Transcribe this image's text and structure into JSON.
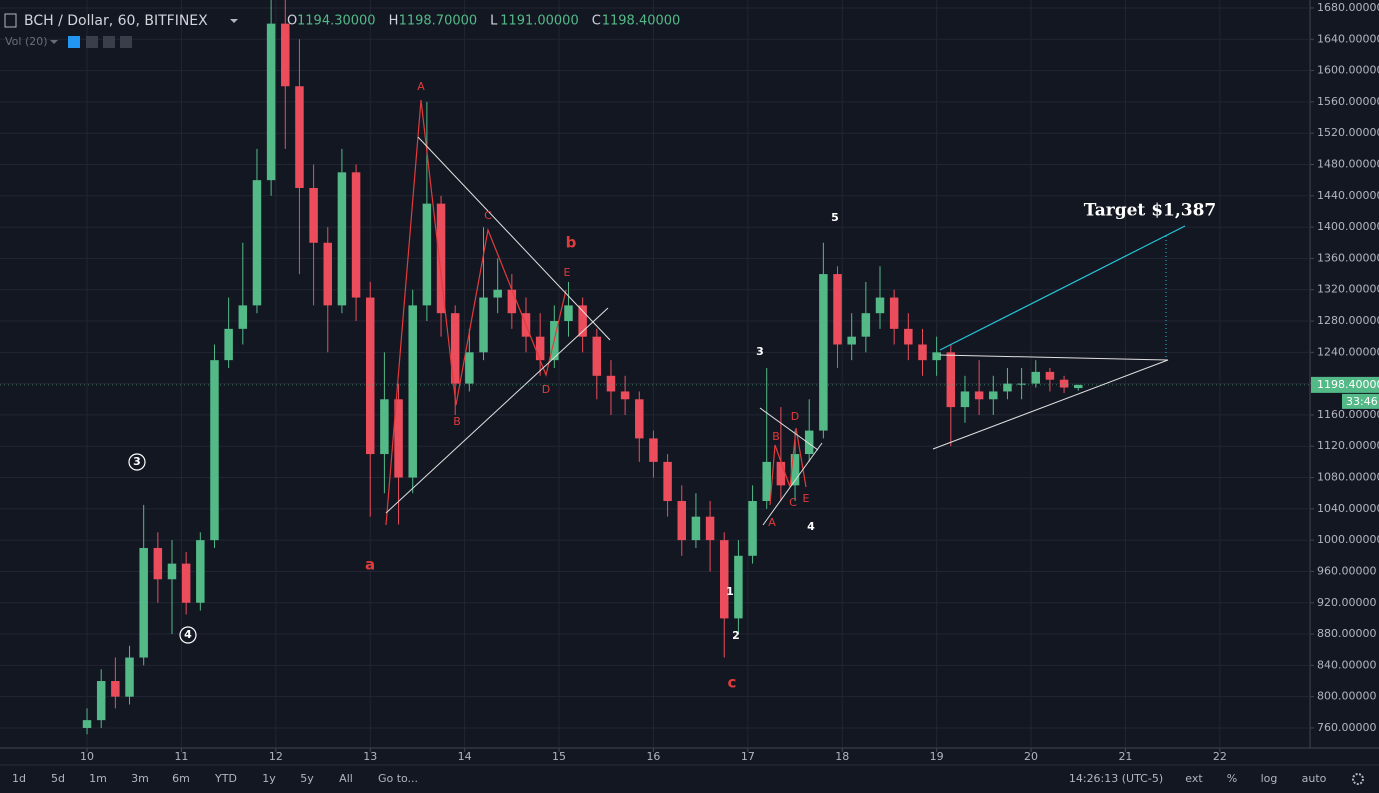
{
  "chart_data": {
    "type": "candlestick",
    "title": "BCH / Dollar, 60, BITFINEX",
    "ohlc_labels": [
      "O",
      "H",
      "L",
      "C"
    ],
    "ohlc_values": [
      "1194.30000",
      "1198.70000",
      "1191.00000",
      "1198.40000"
    ],
    "indicator": "Vol (20)",
    "x": [
      10,
      10.15,
      10.3,
      10.45,
      10.6,
      10.75,
      10.9,
      11.05,
      11.2,
      11.35,
      11.5,
      11.65,
      11.8,
      11.95,
      12.1,
      12.25,
      12.4,
      12.55,
      12.7,
      12.85,
      13,
      13.15,
      13.3,
      13.45,
      13.6,
      13.75,
      13.9,
      14.05,
      14.2,
      14.35,
      14.5,
      14.65,
      14.8,
      14.95,
      15.1,
      15.25,
      15.4,
      15.55,
      15.7,
      15.85,
      16,
      16.15,
      16.3,
      16.45,
      16.6,
      16.75,
      16.9,
      17.05,
      17.2,
      17.35,
      17.5,
      17.65,
      17.8,
      17.95,
      18.1,
      18.25,
      18.4,
      18.55,
      18.7,
      18.85,
      19,
      19.15,
      19.3,
      19.45,
      19.6,
      19.75,
      19.9,
      20.05,
      20.2,
      20.35,
      20.5
    ],
    "open": [
      760,
      770,
      820,
      800,
      850,
      990,
      950,
      970,
      920,
      1000,
      1230,
      1270,
      1300,
      1460,
      1660,
      1580,
      1450,
      1380,
      1300,
      1470,
      1310,
      1110,
      1180,
      1080,
      1300,
      1430,
      1290,
      1200,
      1240,
      1310,
      1320,
      1290,
      1260,
      1230,
      1280,
      1300,
      1260,
      1210,
      1190,
      1180,
      1130,
      1100,
      1050,
      1000,
      1030,
      1000,
      900,
      980,
      1050,
      1100,
      1070,
      1110,
      1140,
      1340,
      1250,
      1260,
      1290,
      1310,
      1270,
      1250,
      1230,
      1240,
      1170,
      1190,
      1180,
      1190,
      1200,
      1200,
      1215,
      1205,
      1194.3
    ],
    "high": [
      785,
      835,
      850,
      865,
      1045,
      1010,
      1000,
      985,
      1010,
      1250,
      1310,
      1380,
      1500,
      1700,
      1710,
      1640,
      1480,
      1400,
      1500,
      1480,
      1330,
      1240,
      1200,
      1320,
      1560,
      1440,
      1300,
      1270,
      1400,
      1360,
      1340,
      1310,
      1290,
      1300,
      1330,
      1310,
      1270,
      1230,
      1210,
      1190,
      1140,
      1110,
      1070,
      1060,
      1050,
      1010,
      1000,
      1070,
      1220,
      1170,
      1140,
      1180,
      1380,
      1350,
      1290,
      1330,
      1350,
      1320,
      1290,
      1270,
      1260,
      1250,
      1210,
      1230,
      1210,
      1220,
      1220,
      1230,
      1220,
      1210,
      1198.7
    ],
    "low": [
      752,
      760,
      785,
      790,
      840,
      920,
      880,
      905,
      910,
      990,
      1220,
      1250,
      1290,
      1440,
      1500,
      1340,
      1300,
      1240,
      1290,
      1280,
      1030,
      1060,
      1020,
      1060,
      1280,
      1260,
      1160,
      1190,
      1230,
      1290,
      1270,
      1240,
      1210,
      1220,
      1260,
      1240,
      1180,
      1160,
      1160,
      1100,
      1080,
      1030,
      980,
      990,
      960,
      850,
      880,
      970,
      1040,
      1050,
      1050,
      1100,
      1130,
      1220,
      1230,
      1240,
      1270,
      1250,
      1230,
      1210,
      1210,
      1120,
      1150,
      1160,
      1160,
      1180,
      1180,
      1195,
      1190,
      1188,
      1191
    ],
    "close": [
      770,
      820,
      800,
      850,
      990,
      950,
      970,
      920,
      1000,
      1230,
      1270,
      1300,
      1460,
      1660,
      1580,
      1450,
      1380,
      1300,
      1470,
      1310,
      1110,
      1180,
      1080,
      1300,
      1430,
      1290,
      1200,
      1240,
      1310,
      1320,
      1290,
      1260,
      1230,
      1280,
      1300,
      1260,
      1210,
      1190,
      1180,
      1130,
      1100,
      1050,
      1000,
      1030,
      1000,
      900,
      980,
      1050,
      1100,
      1070,
      1110,
      1140,
      1340,
      1250,
      1260,
      1290,
      1310,
      1270,
      1250,
      1230,
      1240,
      1170,
      1190,
      1180,
      1190,
      1200,
      1200,
      1215,
      1205,
      1195,
      1198.4
    ],
    "up_color": "#53b987",
    "down_color": "#eb4d5c",
    "xlim": [
      9.078,
      22.955
    ],
    "ylim": [
      734.4,
      1690.2
    ],
    "xticks": [
      10,
      11,
      12,
      13,
      14,
      15,
      16,
      17,
      18,
      19,
      20,
      21,
      22
    ],
    "yticks": [
      {
        "value": 760,
        "label": "760.00000"
      },
      {
        "value": 800,
        "label": "800.00000"
      },
      {
        "value": 840,
        "label": "840.00000"
      },
      {
        "value": 880,
        "label": "880.00000"
      },
      {
        "value": 920,
        "label": "920.00000"
      },
      {
        "value": 960,
        "label": "960.00000"
      },
      {
        "value": 1000,
        "label": "1000.00000"
      },
      {
        "value": 1040,
        "label": "1040.00000"
      },
      {
        "value": 1080,
        "label": "1080.00000"
      },
      {
        "value": 1120,
        "label": "1120.00000"
      },
      {
        "value": 1160,
        "label": "1160.00000"
      },
      {
        "value": 1200,
        "label": "1200.00000"
      },
      {
        "value": 1240,
        "label": "1240.00000"
      },
      {
        "value": 1280,
        "label": "1280.00000"
      },
      {
        "value": 1320,
        "label": "1320.00000"
      },
      {
        "value": 1360,
        "label": "1360.00000"
      },
      {
        "value": 1400,
        "label": "1400.00000"
      },
      {
        "value": 1440,
        "label": "1440.00000"
      },
      {
        "value": 1480,
        "label": "1480.00000"
      },
      {
        "value": 1520,
        "label": "1520.00000"
      },
      {
        "value": 1560,
        "label": "1560.00000"
      },
      {
        "value": 1600,
        "label": "1600.00000"
      },
      {
        "value": 1640,
        "label": "1640.00000"
      },
      {
        "value": 1680,
        "label": "1680.00000"
      }
    ],
    "grid": true,
    "last_price": {
      "value": 1198.4,
      "label": "1198.40000"
    },
    "countdown": "33:46",
    "annotations": [
      "A",
      "B",
      "C",
      "D",
      "E",
      "b",
      "a",
      "c",
      "A",
      "B",
      "C",
      "D",
      "E",
      "1",
      "2",
      "3",
      "4",
      "5",
      "3",
      "4",
      "Target $1,387"
    ],
    "toolbar": [
      "1d",
      "5d",
      "1m",
      "3m",
      "6m",
      "YTD",
      "1y",
      "5y",
      "All",
      "Go to..."
    ],
    "timestamp": "14:26:13 (UTC-5)",
    "toolbar_right": [
      "ext",
      "%",
      "log",
      "auto"
    ]
  }
}
